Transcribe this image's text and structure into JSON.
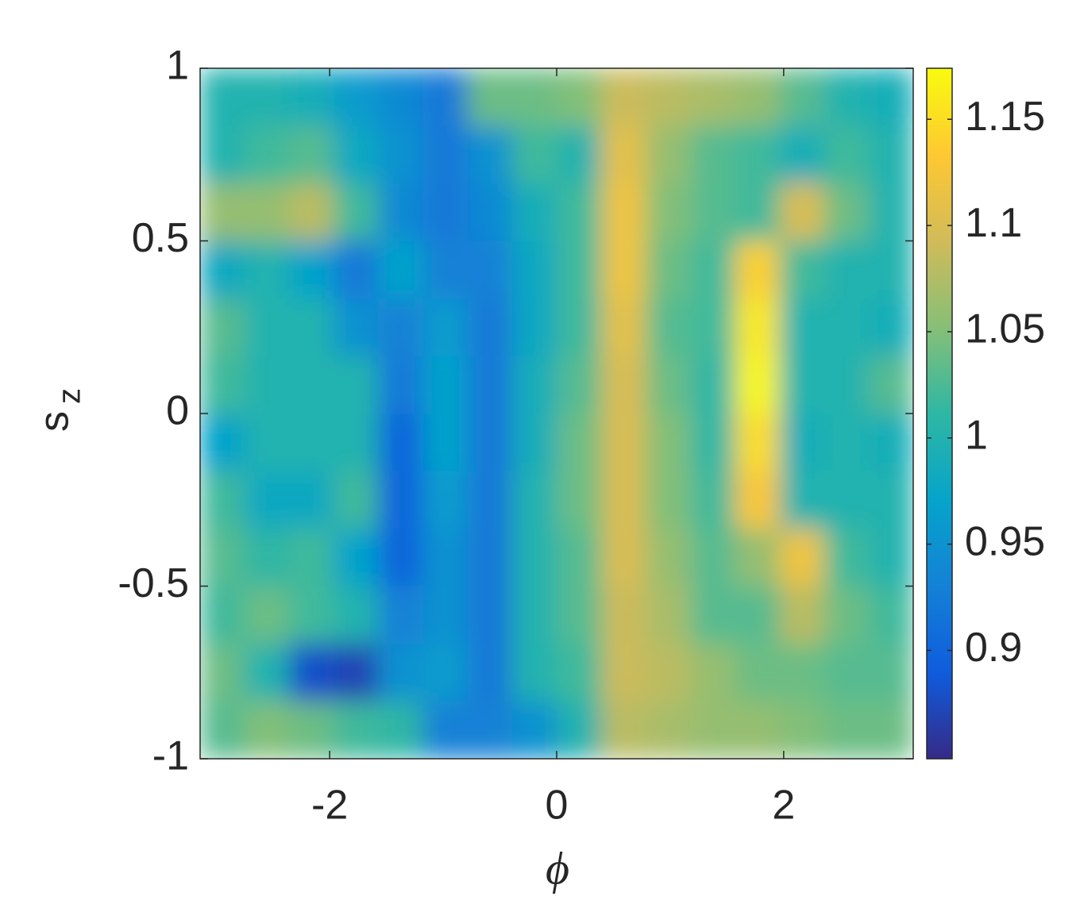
{
  "chart_data": {
    "type": "heatmap",
    "xlabel": "ϕ",
    "ylabel": "s",
    "ylabel_subscript": "z",
    "xlim": [
      -3.1416,
      3.1416
    ],
    "xticks": [
      -2,
      0,
      2
    ],
    "ylim": [
      -1,
      1
    ],
    "yticks": [
      -1,
      -0.5,
      0,
      0.5,
      1
    ],
    "clim": [
      0.849,
      1.174
    ],
    "cticks": [
      0.9,
      0.95,
      1,
      1.05,
      1.1,
      1.15
    ],
    "colormap": [
      "#352a87",
      "#0f5cdd",
      "#1481d6",
      "#06a4ca",
      "#2eb7a4",
      "#87bf77",
      "#d1bb59",
      "#fec832",
      "#f9fb0e"
    ],
    "z": [
      [
        1.0,
        1.0,
        0.99,
        0.96,
        0.94,
        0.92,
        1.04,
        1.04,
        1.05,
        1.09,
        1.08,
        1.07,
        1.06,
        1.03,
        1.0,
        0.99
      ],
      [
        1.0,
        1.02,
        1.03,
        0.98,
        0.95,
        0.92,
        0.95,
        1.02,
        1.0,
        1.11,
        1.06,
        1.03,
        1.02,
        0.99,
        1.02,
        1.0
      ],
      [
        1.06,
        1.06,
        1.08,
        1.02,
        0.94,
        0.92,
        0.94,
        0.99,
        1.02,
        1.12,
        1.05,
        1.03,
        1.02,
        1.1,
        1.04,
        1.0
      ],
      [
        0.98,
        1.0,
        0.97,
        0.92,
        0.97,
        0.93,
        0.93,
        0.98,
        1.02,
        1.12,
        1.04,
        1.02,
        1.14,
        1.02,
        1.0,
        1.0
      ],
      [
        1.03,
        1.0,
        1.0,
        0.95,
        0.93,
        0.96,
        0.92,
        0.98,
        1.02,
        1.11,
        1.03,
        1.02,
        1.16,
        1.0,
        1.0,
        0.99
      ],
      [
        1.02,
        1.0,
        1.0,
        1.0,
        0.92,
        0.97,
        0.92,
        0.99,
        1.03,
        1.1,
        1.04,
        1.01,
        1.17,
        1.0,
        1.0,
        1.03
      ],
      [
        0.97,
        1.0,
        1.0,
        1.0,
        0.9,
        0.97,
        0.92,
        0.99,
        1.04,
        1.1,
        1.05,
        1.01,
        1.15,
        0.99,
        1.0,
        0.99
      ],
      [
        1.02,
        0.98,
        0.98,
        1.02,
        0.9,
        0.96,
        0.92,
        1.0,
        1.04,
        1.1,
        1.05,
        1.02,
        1.13,
        1.0,
        1.0,
        1.0
      ],
      [
        1.03,
        1.01,
        1.02,
        0.97,
        0.9,
        0.95,
        0.92,
        1.0,
        1.03,
        1.1,
        1.06,
        1.03,
        1.06,
        1.12,
        1.02,
        1.0
      ],
      [
        1.02,
        1.04,
        1.02,
        1.0,
        0.93,
        0.95,
        0.92,
        1.0,
        1.03,
        1.09,
        1.07,
        1.03,
        1.03,
        1.08,
        1.04,
        1.02
      ],
      [
        1.04,
        1.0,
        0.88,
        0.87,
        0.95,
        0.96,
        0.92,
        1.0,
        1.02,
        1.09,
        1.08,
        1.06,
        1.04,
        1.04,
        1.03,
        1.03
      ],
      [
        1.03,
        1.05,
        1.04,
        1.02,
        1.01,
        0.93,
        0.93,
        0.95,
        1.0,
        1.08,
        1.07,
        1.06,
        1.06,
        1.05,
        1.04,
        1.04
      ]
    ]
  }
}
